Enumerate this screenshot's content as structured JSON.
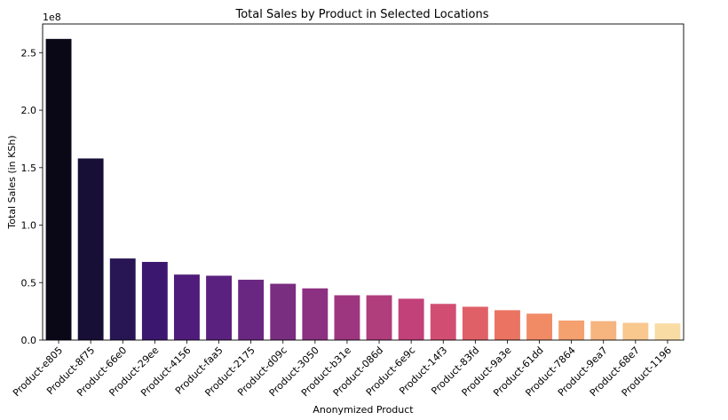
{
  "chart_data": {
    "type": "bar",
    "title": "Total Sales by Product in Selected Locations",
    "xlabel": "Anonymized Product",
    "ylabel": "Total Sales (in KSh)",
    "y_offset_label": "1e8",
    "ylim": [
      0,
      2.75
    ],
    "yticks": [
      0.0,
      0.5,
      1.0,
      1.5,
      2.0,
      2.5
    ],
    "ytick_labels": [
      "0.0",
      "0.5",
      "1.0",
      "1.5",
      "2.0",
      "2.5"
    ],
    "categories": [
      "Product-e805",
      "Product-8f75",
      "Product-66e0",
      "Product-29ee",
      "Product-4156",
      "Product-faa5",
      "Product-2175",
      "Product-d09c",
      "Product-3050",
      "Product-b31e",
      "Product-086d",
      "Product-6e9c",
      "Product-14f3",
      "Product-83fd",
      "Product-9a3e",
      "Product-61dd",
      "Product-7864",
      "Product-9ea7",
      "Product-68e7",
      "Product-1196"
    ],
    "values": [
      2.62,
      1.58,
      0.71,
      0.68,
      0.57,
      0.56,
      0.525,
      0.49,
      0.45,
      0.39,
      0.39,
      0.36,
      0.315,
      0.29,
      0.26,
      0.23,
      0.17,
      0.165,
      0.15,
      0.145
    ],
    "colors": [
      "#0a0817",
      "#170f36",
      "#281654",
      "#3b1770",
      "#4f1c7b",
      "#5a217e",
      "#6a2781",
      "#7a2e80",
      "#8c3181",
      "#9e367f",
      "#b03d7c",
      "#c24179",
      "#d14e72",
      "#e06067",
      "#ea7361",
      "#f08b66",
      "#f4a06f",
      "#f6b47e",
      "#f8c88f",
      "#f9dca4"
    ]
  }
}
